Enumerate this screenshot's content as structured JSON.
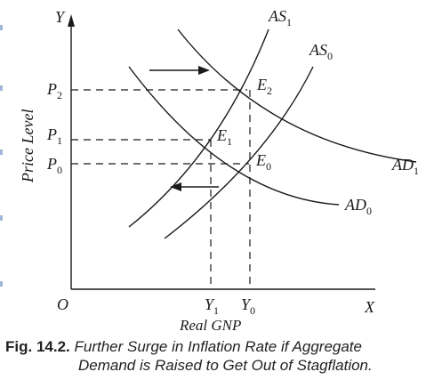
{
  "diagram": {
    "y_axis_letter": "Y",
    "x_axis_letter": "X",
    "origin": "O",
    "y_axis_title": "Price Level",
    "x_axis_title": "Real GNP",
    "price_labels": [
      {
        "base": "P",
        "sub": "2"
      },
      {
        "base": "P",
        "sub": "1"
      },
      {
        "base": "P",
        "sub": "0"
      }
    ],
    "output_labels": [
      {
        "base": "Y",
        "sub": "1"
      },
      {
        "base": "Y",
        "sub": "0"
      }
    ],
    "curves": {
      "as1": {
        "base": "AS",
        "sub": "1"
      },
      "as0": {
        "base": "AS",
        "sub": "0"
      },
      "ad1": {
        "base": "AD",
        "sub": "1"
      },
      "ad0": {
        "base": "AD",
        "sub": "0"
      }
    },
    "equilibria": {
      "e2": {
        "base": "E",
        "sub": "2"
      },
      "e1": {
        "base": "E",
        "sub": "1"
      },
      "e0": {
        "base": "E",
        "sub": "0"
      }
    }
  },
  "caption": {
    "label": "Fig. 14.2.",
    "line1": "Further Surge in Inflation Rate if Aggregate",
    "line2": "Demand is Raised to Get Out of Stagflation."
  }
}
